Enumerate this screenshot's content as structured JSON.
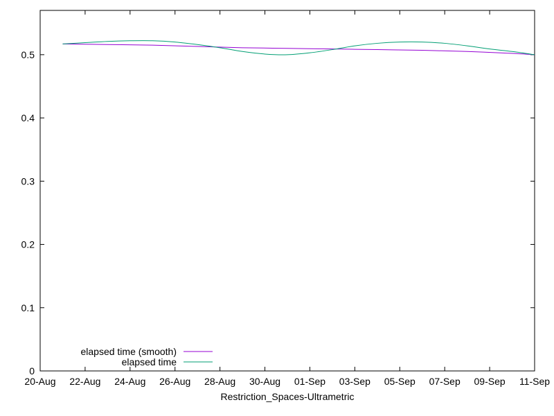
{
  "chart_data": {
    "type": "line",
    "title": "",
    "xlabel": "Restriction_Spaces-Ultrametric",
    "ylabel": "",
    "x_ticks": [
      "20-Aug",
      "22-Aug",
      "24-Aug",
      "26-Aug",
      "28-Aug",
      "30-Aug",
      "01-Sep",
      "03-Sep",
      "05-Sep",
      "07-Sep",
      "09-Sep",
      "11-Sep"
    ],
    "xlim": [
      "2020-08-20",
      "2020-09-11"
    ],
    "ylim": [
      0,
      0.57
    ],
    "y_ticks": [
      "0",
      "0.1",
      "0.2",
      "0.3",
      "0.4",
      "0.5"
    ],
    "grid": false,
    "legend_position": "bottom-left",
    "series": [
      {
        "name": "elapsed time (smooth)",
        "color": "#9400d3",
        "x": [
          "2020-08-21",
          "2020-08-23",
          "2020-08-25",
          "2020-08-27",
          "2020-08-29",
          "2020-08-31",
          "2020-09-02",
          "2020-09-04",
          "2020-09-06",
          "2020-09-08",
          "2020-09-10",
          "2020-09-11"
        ],
        "values": [
          0.517,
          0.516,
          0.515,
          0.513,
          0.511,
          0.51,
          0.509,
          0.508,
          0.507,
          0.505,
          0.502,
          0.5
        ]
      },
      {
        "name": "elapsed time",
        "color": "#009e73",
        "x": [
          "2020-08-21",
          "2020-08-22",
          "2020-08-23",
          "2020-08-24",
          "2020-08-25",
          "2020-08-26",
          "2020-08-27",
          "2020-08-28",
          "2020-08-29",
          "2020-08-30",
          "2020-08-31",
          "2020-09-01",
          "2020-09-02",
          "2020-09-03",
          "2020-09-04",
          "2020-09-05",
          "2020-09-06",
          "2020-09-07",
          "2020-09-08",
          "2020-09-09",
          "2020-09-10",
          "2020-09-11"
        ],
        "values": [
          0.517,
          0.519,
          0.521,
          0.522,
          0.522,
          0.52,
          0.516,
          0.511,
          0.505,
          0.501,
          0.5,
          0.503,
          0.508,
          0.514,
          0.518,
          0.52,
          0.52,
          0.518,
          0.514,
          0.509,
          0.505,
          0.5
        ]
      }
    ]
  }
}
